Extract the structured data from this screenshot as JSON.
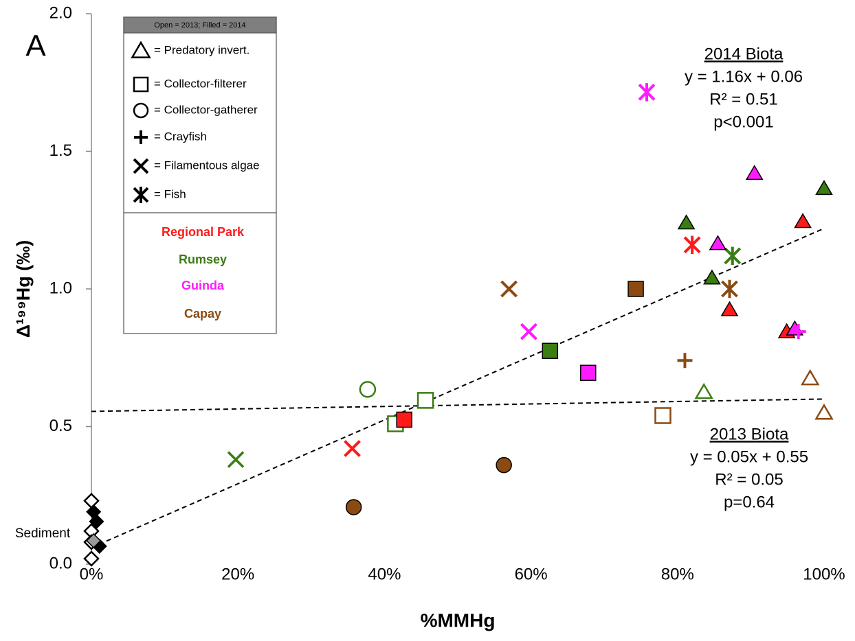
{
  "chart_data": {
    "type": "scatter",
    "x_label": "%MMHg",
    "y_label": "Δ¹⁹⁹Hg (‰)",
    "xlim": [
      0,
      100
    ],
    "ylim": [
      0,
      2
    ],
    "xticks": [
      {
        "value": 0,
        "label": "0%"
      },
      {
        "value": 20,
        "label": "20%"
      },
      {
        "value": 40,
        "label": "40%"
      },
      {
        "value": 60,
        "label": "60%"
      },
      {
        "value": 80,
        "label": "80%"
      },
      {
        "value": 100,
        "label": "100%"
      }
    ],
    "yticks": [
      {
        "value": 0,
        "label": "0.0"
      },
      0.5,
      {
        "value": 1,
        "label": "1.0"
      },
      1.5,
      {
        "value": 2,
        "label": "2.0"
      }
    ],
    "annotations": [
      "A",
      "Sediment"
    ],
    "fits": [
      {
        "lines": [
          "2014 Biota",
          "y = 1.16x + 0.06",
          "R² = 0.51",
          "p<0.001"
        ],
        "x": [
          0,
          100
        ],
        "y": [
          0.06,
          1.22
        ]
      },
      {
        "lines": [
          "2013 Biota",
          "y = 0.05x + 0.55",
          "R² = 0.05",
          "p=0.64"
        ],
        "x": [
          0,
          100
        ],
        "y": [
          0.555,
          0.6
        ]
      }
    ],
    "legend": {
      "title": "Open = 2013; Filled = 2014",
      "markers": [
        {
          "marker": "triangle",
          "label": "= Predatory invert."
        },
        {
          "marker": "square",
          "label": "= Collector-filterer"
        },
        {
          "marker": "circle",
          "label": "= Collector-gatherer"
        },
        {
          "marker": "plus",
          "label": "= Crayfish"
        },
        {
          "marker": "x",
          "label": "= Filamentous algae"
        },
        {
          "marker": "asterisk",
          "label": "= Fish"
        }
      ],
      "sites": [
        {
          "label": "Regional Park",
          "color": "#ff1a1a"
        },
        {
          "label": "Rumsey",
          "color": "#3a7d12"
        },
        {
          "label": "Guinda",
          "color": "#ff1aff"
        },
        {
          "label": "Capay",
          "color": "#8b4a12"
        }
      ]
    },
    "points": [
      {
        "x": 0,
        "y": 0.23,
        "marker": "diamond",
        "color": "#000000",
        "filled": false
      },
      {
        "x": 0,
        "y": 0.12,
        "marker": "diamond",
        "color": "#000000",
        "filled": false
      },
      {
        "x": 0,
        "y": 0.08,
        "marker": "diamond",
        "color": "#000000",
        "filled": false
      },
      {
        "x": 0,
        "y": 0.02,
        "marker": "diamond",
        "color": "#000000",
        "filled": false
      },
      {
        "x": 0.3,
        "y": 0.19,
        "marker": "diamond",
        "color": "#000000",
        "filled": true
      },
      {
        "x": 0.7,
        "y": 0.155,
        "marker": "diamond",
        "color": "#000000",
        "filled": true
      },
      {
        "x": 1.1,
        "y": 0.065,
        "marker": "diamond",
        "color": "#000000",
        "filled": true
      },
      {
        "x": 0.3,
        "y": 0.085,
        "marker": "diamond",
        "color": "#999999",
        "filled": true
      },
      {
        "x": 19.7,
        "y": 0.38,
        "marker": "x",
        "color": "#3a7d12",
        "filled": false
      },
      {
        "x": 37.7,
        "y": 0.635,
        "marker": "circle",
        "color": "#3a7d12",
        "filled": false
      },
      {
        "x": 41.5,
        "y": 0.51,
        "marker": "square",
        "color": "#3a7d12",
        "filled": false
      },
      {
        "x": 45.6,
        "y": 0.595,
        "marker": "square",
        "color": "#3a7d12",
        "filled": false
      },
      {
        "x": 62.6,
        "y": 0.775,
        "marker": "square",
        "color": "#3a7d12",
        "filled": true
      },
      {
        "x": 81.2,
        "y": 1.24,
        "marker": "triangle",
        "color": "#3a7d12",
        "filled": true
      },
      {
        "x": 84.7,
        "y": 1.04,
        "marker": "triangle",
        "color": "#3a7d12",
        "filled": true
      },
      {
        "x": 100,
        "y": 1.365,
        "marker": "triangle",
        "color": "#3a7d12",
        "filled": true
      },
      {
        "x": 83.6,
        "y": 0.625,
        "marker": "triangle",
        "color": "#3a7d12",
        "filled": false
      },
      {
        "x": 87.5,
        "y": 1.12,
        "marker": "asterisk",
        "color": "#3a7d12",
        "filled": true
      },
      {
        "x": 42.7,
        "y": 0.525,
        "marker": "square",
        "color": "#ff1a1a",
        "filled": true
      },
      {
        "x": 35.6,
        "y": 0.42,
        "marker": "x",
        "color": "#ff1a1a",
        "filled": true
      },
      {
        "x": 82,
        "y": 1.16,
        "marker": "asterisk",
        "color": "#ff1a1a",
        "filled": true
      },
      {
        "x": 97.1,
        "y": 1.245,
        "marker": "triangle",
        "color": "#ff1a1a",
        "filled": true
      },
      {
        "x": 87.1,
        "y": 0.925,
        "marker": "triangle",
        "color": "#ff1a1a",
        "filled": true
      },
      {
        "x": 94.9,
        "y": 0.845,
        "marker": "triangle",
        "color": "#ff1a1a",
        "filled": true
      },
      {
        "x": 75.8,
        "y": 1.715,
        "marker": "asterisk",
        "color": "#ff1aff",
        "filled": true
      },
      {
        "x": 59.7,
        "y": 0.845,
        "marker": "x",
        "color": "#ff1aff",
        "filled": true
      },
      {
        "x": 67.8,
        "y": 0.695,
        "marker": "square",
        "color": "#ff1aff",
        "filled": true
      },
      {
        "x": 90.5,
        "y": 1.42,
        "marker": "triangle",
        "color": "#ff1aff",
        "filled": true
      },
      {
        "x": 85.5,
        "y": 1.165,
        "marker": "triangle",
        "color": "#ff1aff",
        "filled": true
      },
      {
        "x": 96,
        "y": 0.855,
        "marker": "triangle",
        "color": "#ff1aff",
        "filled": true
      },
      {
        "x": 96.5,
        "y": 0.845,
        "marker": "plus",
        "color": "#ff1aff",
        "filled": true
      },
      {
        "x": 57,
        "y": 1.0,
        "marker": "x",
        "color": "#8b4a12",
        "filled": true
      },
      {
        "x": 74.3,
        "y": 1.0,
        "marker": "square",
        "color": "#8b4a12",
        "filled": true
      },
      {
        "x": 87.1,
        "y": 1.0,
        "marker": "asterisk",
        "color": "#8b4a12",
        "filled": true
      },
      {
        "x": 81,
        "y": 0.74,
        "marker": "plus",
        "color": "#8b4a12",
        "filled": true
      },
      {
        "x": 78,
        "y": 0.54,
        "marker": "square",
        "color": "#8b4a12",
        "filled": false
      },
      {
        "x": 98.1,
        "y": 0.675,
        "marker": "triangle",
        "color": "#8b4a12",
        "filled": false
      },
      {
        "x": 100,
        "y": 0.55,
        "marker": "triangle",
        "color": "#8b4a12",
        "filled": false
      },
      {
        "x": 35.8,
        "y": 0.207,
        "marker": "circle",
        "color": "#8b4a12",
        "filled": true
      },
      {
        "x": 56.3,
        "y": 0.36,
        "marker": "circle",
        "color": "#8b4a12",
        "filled": true
      }
    ]
  }
}
